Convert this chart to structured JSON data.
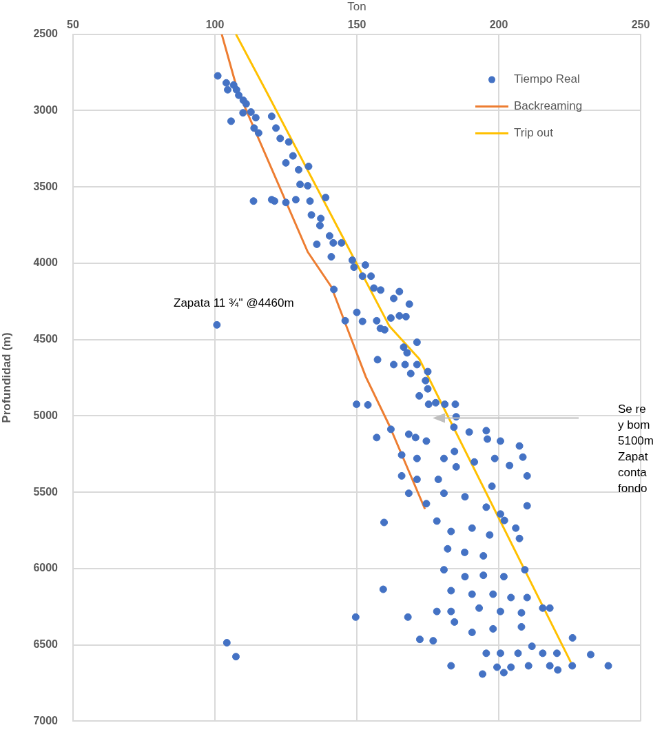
{
  "chart_data": {
    "type": "scatter",
    "xlabel": "Ton",
    "ylabel": "Profundidad (m)",
    "xlim": [
      50,
      250
    ],
    "xticks": [
      50,
      100,
      150,
      200,
      250
    ],
    "ylim": [
      7000,
      2500
    ],
    "yticks": [
      2500,
      3000,
      3500,
      4000,
      4500,
      5000,
      5500,
      6000,
      6500,
      7000
    ],
    "grid": true,
    "legend": "top right",
    "annotations": [
      "Zapata 11 ¾'' @4460m",
      "Se re\ny bom\n5100m\nZapat\nconta\nfondo"
    ],
    "series": [
      {
        "name": "Tiempo Real",
        "type": "scatter",
        "color": "#4472c4",
        "marker": "circle",
        "x": [
          101,
          104,
          104.5,
          106.6,
          107.6,
          108.4,
          110,
          111,
          109.9,
          105.7,
          112.7,
          114.4,
          113.8,
          115.4,
          120,
          121.5,
          123,
          126,
          127.5,
          125,
          129.5,
          133,
          130,
          132.7,
          133.5,
          139,
          113.6,
          120,
          121,
          125,
          128.5,
          134,
          137,
          137.3,
          135.9,
          140.4,
          141.7,
          144.6,
          141,
          148.4,
          149,
          153,
          152,
          155,
          156,
          158.4,
          165,
          163,
          168.5,
          141.9,
          150,
          100.7,
          145.9,
          152,
          157,
          162,
          165,
          167.3,
          158.3,
          159.8,
          166.5,
          167.7,
          171.2,
          167,
          171.2,
          169,
          175,
          174.2,
          175,
          172,
          157.3,
          163,
          175.3,
          177.8,
          181,
          184.7,
          185,
          149.9,
          153.9,
          184.2,
          189.6,
          195.6,
          157,
          162,
          168.3,
          170.7,
          174.5,
          165.8,
          171.2,
          180.7,
          184.4,
          165.8,
          171.2,
          178.7,
          185,
          191.4,
          196,
          200.6,
          198.6,
          207.3,
          208.5,
          210,
          203.8,
          197.6,
          168.3,
          174.5,
          180.7,
          188.1,
          195.6,
          200.6,
          210,
          206,
          207.3,
          202,
          178.2,
          183.2,
          190.6,
          196.8,
          182,
          188,
          194.6,
          159.6,
          180.7,
          188.1,
          194.6,
          201.8,
          209.2,
          183.2,
          190.6,
          198,
          204.3,
          210,
          178.2,
          183.2,
          193.1,
          200.6,
          208,
          215.5,
          218,
          159.3,
          168,
          149.6,
          172.2,
          176.9,
          184.4,
          190.6,
          198,
          208,
          211.7,
          195.6,
          200.6,
          206.8,
          215.5,
          220.5,
          226,
          232.4,
          199.4,
          204.3,
          210.5,
          218,
          220.8,
          225.9,
          238.6,
          183.2,
          194.3,
          201.8,
          104.2,
          107.4
        ],
        "values": [
          2773,
          2819,
          2864,
          2833,
          2864,
          2900,
          2933,
          2956,
          3015,
          3070,
          3010,
          3047,
          3115,
          3147,
          3038,
          3115,
          3183,
          3206,
          3297,
          3343,
          3388,
          3366,
          3484,
          3493,
          3593,
          3570,
          3593,
          3584,
          3593,
          3602,
          3584,
          3684,
          3753,
          3707,
          3876,
          3821,
          3867,
          3867,
          3958,
          3980,
          4026,
          4012,
          4085,
          4085,
          4163,
          4176,
          4186,
          4231,
          4268,
          4172,
          4322,
          4404,
          4377,
          4381,
          4377,
          4359,
          4345,
          4350,
          4427,
          4436,
          4550,
          4587,
          4518,
          4664,
          4664,
          4723,
          4710,
          4769,
          4823,
          4869,
          4632,
          4664,
          4924,
          4914,
          4924,
          4924,
          5006,
          4924,
          4928,
          5074,
          5106,
          5097,
          5142,
          5088,
          5120,
          5142,
          5165,
          5256,
          5279,
          5279,
          5233,
          5393,
          5416,
          5416,
          5334,
          5302,
          5152,
          5165,
          5279,
          5197,
          5270,
          5393,
          5325,
          5461,
          5507,
          5575,
          5507,
          5530,
          5598,
          5643,
          5589,
          5735,
          5803,
          5685,
          5689,
          5757,
          5735,
          5780,
          5871,
          5894,
          5917,
          5698,
          6008,
          6053,
          6044,
          6053,
          6008,
          6145,
          6168,
          6168,
          6190,
          6190,
          6281,
          6281,
          6259,
          6281,
          6290,
          6259,
          6259,
          6136,
          6318,
          6318,
          6464,
          6473,
          6350,
          6418,
          6395,
          6382,
          6509,
          6555,
          6555,
          6555,
          6555,
          6555,
          6454,
          6564,
          6646,
          6646,
          6637,
          6637,
          6664,
          6637,
          6637,
          6637,
          6691,
          6682,
          6486,
          6577
        ]
      },
      {
        "name": "Backreaming",
        "type": "line",
        "color": "#ed7d31",
        "marker": "none",
        "x": [
          102.4,
          107.9,
          132.7,
          141,
          153.2,
          161.5,
          174
        ],
        "values": [
          2500,
          2864,
          3926,
          4154,
          4746,
          5065,
          5610
        ]
      },
      {
        "name": "Trip out",
        "type": "line",
        "color": "#ffc000",
        "marker": "none",
        "x": [
          107.4,
          117.8,
          145.2,
          161.5,
          172,
          225.4
        ],
        "values": [
          2500,
          2864,
          3835,
          4413,
          4627,
          6614
        ]
      }
    ]
  }
}
